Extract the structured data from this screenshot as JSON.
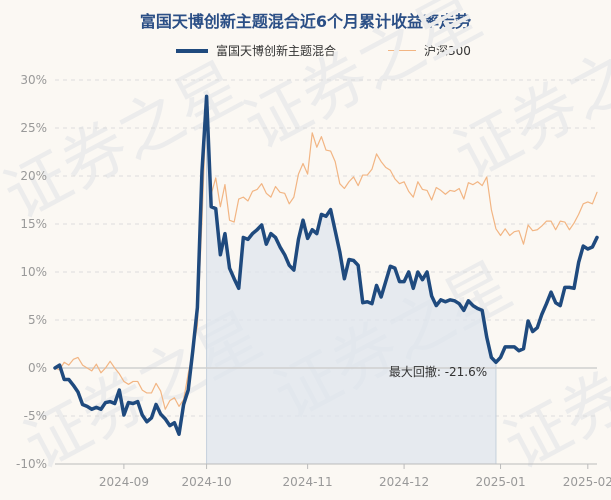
{
  "chart_data": {
    "type": "line",
    "title": "富国天博创新主题混合近6个月累计收益率走势",
    "series": [
      {
        "name": "富国天博创新主题混合",
        "color": "#1f4a7e",
        "values": [
          0.0,
          0.3,
          -1.2,
          -1.2,
          -1.8,
          -2.5,
          -3.8,
          -4.0,
          -4.3,
          -4.1,
          -4.3,
          -3.6,
          -3.5,
          -3.7,
          -2.3,
          -4.9,
          -3.6,
          -3.7,
          -3.5,
          -4.9,
          -5.6,
          -5.2,
          -3.8,
          -4.8,
          -5.3,
          -6.0,
          -5.7,
          -6.9,
          -3.8,
          -2.3,
          1.8,
          6.3,
          20.5,
          28.3,
          16.8,
          16.6,
          11.8,
          14.0,
          10.4,
          9.3,
          8.3,
          13.6,
          13.4,
          14.0,
          14.4,
          14.9,
          12.9,
          14.0,
          13.6,
          12.6,
          11.8,
          10.7,
          10.2,
          13.4,
          15.4,
          13.5,
          14.4,
          14.0,
          16.0,
          15.8,
          16.5,
          14.3,
          12.1,
          9.3,
          11.3,
          11.2,
          10.7,
          6.8,
          6.9,
          6.7,
          8.6,
          7.4,
          9.0,
          10.6,
          10.4,
          9.0,
          9.0,
          10.0,
          8.3,
          10.0,
          9.2,
          10.0,
          7.5,
          6.5,
          7.1,
          6.9,
          7.1,
          7.0,
          6.7,
          6.0,
          7.0,
          6.5,
          6.2,
          6.0,
          3.2,
          1.1,
          0.6,
          1.1,
          2.2,
          2.2,
          2.2,
          1.8,
          2.0,
          4.9,
          3.8,
          4.2,
          5.6,
          6.7,
          7.9,
          6.8,
          6.5,
          8.4,
          8.4,
          8.3,
          11.0,
          12.7,
          12.4,
          12.6,
          13.6
        ]
      },
      {
        "name": "沪深300",
        "color": "#f2b583",
        "values": [
          0.0,
          -0.2,
          0.6,
          0.3,
          0.9,
          1.1,
          0.3,
          0.0,
          -0.3,
          0.4,
          -0.5,
          0.0,
          0.7,
          0.0,
          -0.6,
          -1.4,
          -1.7,
          -1.4,
          -1.4,
          -2.3,
          -2.6,
          -2.6,
          -1.6,
          -2.4,
          -4.3,
          -3.4,
          -3.1,
          -4.0,
          -3.3,
          -0.6,
          1.8,
          4.4,
          15.4,
          28.1,
          18.1,
          19.8,
          16.8,
          19.1,
          15.4,
          15.2,
          17.6,
          17.8,
          17.4,
          18.4,
          18.6,
          19.2,
          18.2,
          17.8,
          18.9,
          18.3,
          18.2,
          17.1,
          17.8,
          20.2,
          21.3,
          20.2,
          24.5,
          23.0,
          24.1,
          22.7,
          22.6,
          21.5,
          19.2,
          18.7,
          19.4,
          19.9,
          19.0,
          20.1,
          20.1,
          20.7,
          22.3,
          21.5,
          20.9,
          20.6,
          19.7,
          19.2,
          19.4,
          18.4,
          17.8,
          19.4,
          18.6,
          18.5,
          17.5,
          18.8,
          18.5,
          18.1,
          18.5,
          18.4,
          18.7,
          17.6,
          19.3,
          19.1,
          19.4,
          19.0,
          19.9,
          16.5,
          14.5,
          13.8,
          14.5,
          13.8,
          14.2,
          14.3,
          12.9,
          14.9,
          14.3,
          14.4,
          14.8,
          15.3,
          15.3,
          14.4,
          15.3,
          15.2,
          14.4,
          15.1,
          16.0,
          17.1,
          17.3,
          17.1,
          18.3
        ]
      }
    ],
    "x_ticks": [
      {
        "label": "2024-09",
        "index": 15
      },
      {
        "label": "2024-10",
        "index": 33
      },
      {
        "label": "2024-11",
        "index": 55
      },
      {
        "label": "2024-12",
        "index": 76
      },
      {
        "label": "2025-01",
        "index": 97
      },
      {
        "label": "2025-02",
        "index": 116
      }
    ],
    "y_ticks": [
      30,
      25,
      20,
      15,
      10,
      5,
      0,
      -5,
      -10
    ],
    "y_tick_suffix": "%",
    "ylim": [
      -10,
      30
    ],
    "grid": "horizontal-dashed",
    "legend_position": "top-center",
    "drawdown": {
      "label": "最大回撤: -21.6%",
      "start_index": 33,
      "end_index": 96
    },
    "watermark": "证券之星"
  }
}
